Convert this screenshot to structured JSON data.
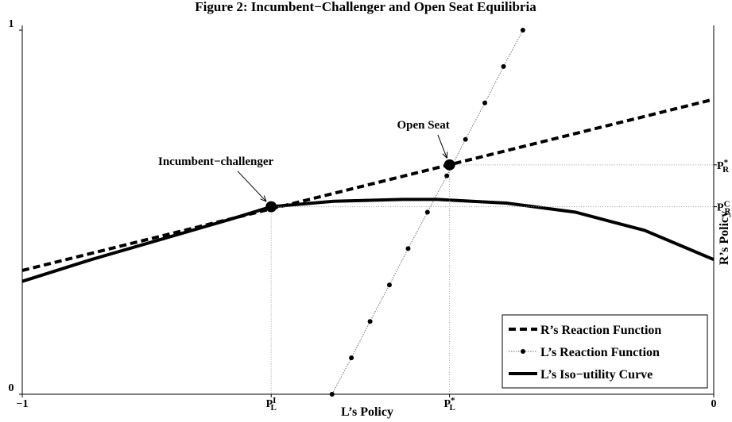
{
  "chart_data": {
    "type": "line",
    "title": "Figure 2: Incumbent−Challenger and Open Seat Equilibria",
    "x_label": "L’s Policy",
    "y_label": "R’s Policy",
    "xlim": [
      -1,
      0
    ],
    "ylim": [
      0,
      1
    ],
    "xticks": [
      {
        "value": -1,
        "label": "−1"
      },
      {
        "value": -0.64,
        "label": "P",
        "sub": "L",
        "sup": "I"
      },
      {
        "value": -0.382,
        "label": "P",
        "sub": "L",
        "sup": "*"
      },
      0
    ],
    "yticks": [
      0,
      1
    ],
    "y2ticks": [
      {
        "value": 0.63,
        "label": "P",
        "sub": "R",
        "sup": "*"
      },
      {
        "value": 0.515,
        "label": "P",
        "sub": "R",
        "sup": "C"
      }
    ],
    "legend": "lower right",
    "series": [
      {
        "name": "R’s Reaction Function",
        "color": "#000000",
        "style": "dashed",
        "x": [
          -1,
          0
        ],
        "values": [
          0.34,
          0.81
        ]
      },
      {
        "name": "L’s Reaction Function",
        "color": "#888888",
        "style": "dotted-markers",
        "x": [
          -0.552,
          -0.524,
          -0.497,
          -0.469,
          -0.442,
          -0.414,
          -0.386,
          -0.359,
          -0.331,
          -0.304,
          -0.276
        ],
        "values": [
          0,
          0.1,
          0.2,
          0.3,
          0.4,
          0.5,
          0.6,
          0.7,
          0.8,
          0.9,
          1
        ]
      },
      {
        "name": "L’s Iso−utility Curve",
        "color": "#000000",
        "style": "solid",
        "x": [
          -1,
          -0.9,
          -0.8,
          -0.7,
          -0.64,
          -0.55,
          -0.45,
          -0.4,
          -0.3,
          -0.2,
          -0.1,
          0
        ],
        "values": [
          0.31,
          0.37,
          0.425,
          0.48,
          0.515,
          0.53,
          0.535,
          0.535,
          0.525,
          0.5,
          0.45,
          0.37
        ]
      }
    ],
    "annotations": [
      {
        "text": "Incumbent−challenger",
        "x": -0.64,
        "y": 0.515
      },
      {
        "text": "Open Seat",
        "x": -0.382,
        "y": 0.63
      }
    ]
  }
}
